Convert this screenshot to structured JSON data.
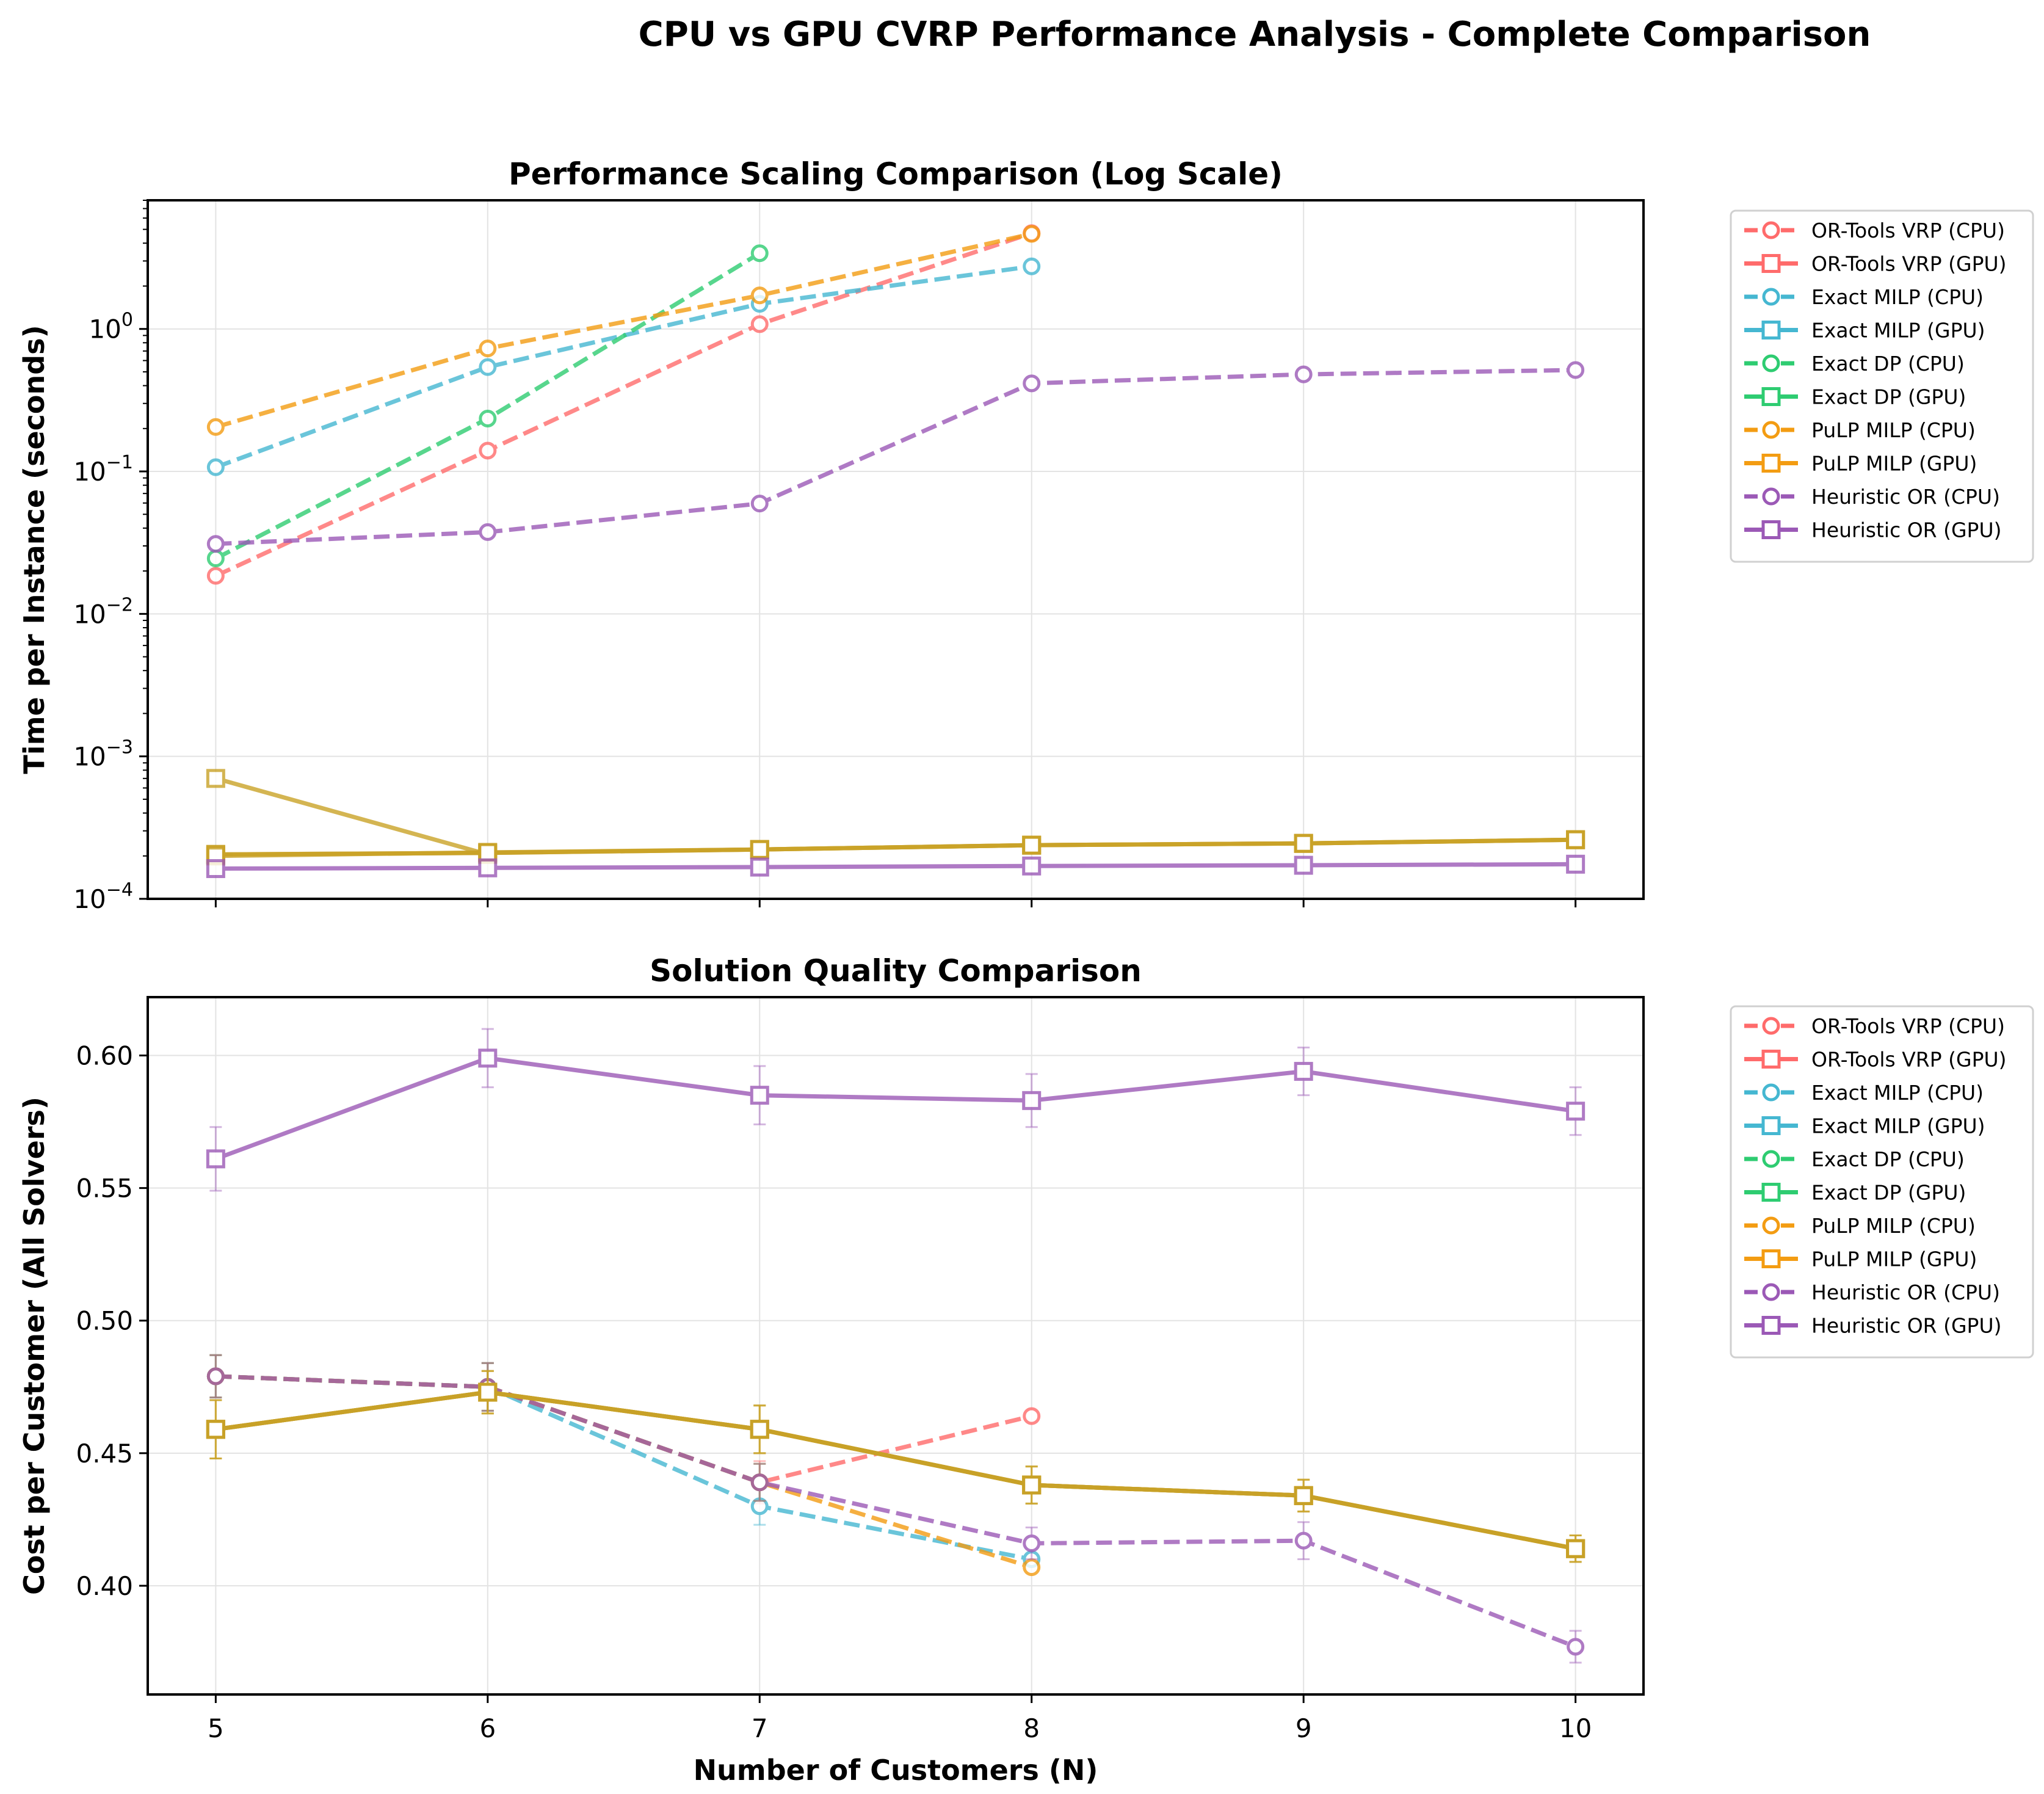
{
  "figure_title": "CPU vs GPU CVRP Performance Analysis - Complete Comparison",
  "colors": {
    "OR-Tools VRP": "#ff6b6b",
    "Exact MILP": "#45b7d1",
    "Exact DP": "#2ecc71",
    "PuLP MILP": "#f39c12",
    "Heuristic OR": "#9b59b6",
    "gpu_overlap": "#c9a227"
  },
  "legend_entries": [
    {
      "label": "OR-Tools VRP (CPU)",
      "solver": "OR-Tools VRP",
      "marker": "circle"
    },
    {
      "label": "OR-Tools VRP (GPU)",
      "solver": "OR-Tools VRP",
      "marker": "square"
    },
    {
      "label": "Exact MILP (CPU)",
      "solver": "Exact MILP",
      "marker": "circle"
    },
    {
      "label": "Exact MILP (GPU)",
      "solver": "Exact MILP",
      "marker": "square"
    },
    {
      "label": "Exact DP (CPU)",
      "solver": "Exact DP",
      "marker": "circle"
    },
    {
      "label": "Exact DP (GPU)",
      "solver": "Exact DP",
      "marker": "square"
    },
    {
      "label": "PuLP MILP (CPU)",
      "solver": "PuLP MILP",
      "marker": "circle"
    },
    {
      "label": "PuLP MILP (GPU)",
      "solver": "PuLP MILP",
      "marker": "square"
    },
    {
      "label": "Heuristic OR (CPU)",
      "solver": "Heuristic OR",
      "marker": "circle"
    },
    {
      "label": "Heuristic OR (GPU)",
      "solver": "Heuristic OR",
      "marker": "square"
    }
  ],
  "chart_data": [
    {
      "type": "line",
      "title": "Performance Scaling Comparison (Log Scale)",
      "xlabel": "",
      "ylabel": "Time per Instance (seconds)",
      "yscale": "log",
      "ylim": [
        0.0001,
        8
      ],
      "xlim": [
        4.75,
        10.25
      ],
      "xticks": [
        5,
        6,
        7,
        8,
        9,
        10
      ],
      "yticks": [
        {
          "value": 0.0001,
          "base": "10",
          "exp": "−4"
        },
        {
          "value": 0.001,
          "base": "10",
          "exp": "−3"
        },
        {
          "value": 0.01,
          "base": "10",
          "exp": "−2"
        },
        {
          "value": 0.1,
          "base": "10",
          "exp": "−1"
        },
        {
          "value": 1,
          "base": "10",
          "exp": "0"
        }
      ],
      "grid": true,
      "legend_position": "outside-right-top",
      "series": [
        {
          "name": "OR-Tools VRP (CPU)",
          "solver": "OR-Tools VRP",
          "device": "CPU",
          "x": [
            5,
            6,
            7,
            8
          ],
          "y": [
            0.0185,
            0.14,
            1.08,
            4.7
          ]
        },
        {
          "name": "Exact MILP (CPU)",
          "solver": "Exact MILP",
          "device": "CPU",
          "x": [
            5,
            6,
            7,
            8
          ],
          "y": [
            0.107,
            0.54,
            1.5,
            2.75
          ]
        },
        {
          "name": "Exact DP (CPU)",
          "solver": "Exact DP",
          "device": "CPU",
          "x": [
            5,
            6,
            7
          ],
          "y": [
            0.0245,
            0.235,
            3.4
          ]
        },
        {
          "name": "PuLP MILP (CPU)",
          "solver": "PuLP MILP",
          "device": "CPU",
          "x": [
            5,
            6,
            7,
            8
          ],
          "y": [
            0.205,
            0.73,
            1.72,
            4.65
          ]
        },
        {
          "name": "Heuristic OR (CPU)",
          "solver": "Heuristic OR",
          "device": "CPU",
          "x": [
            5,
            6,
            7,
            8,
            9,
            10
          ],
          "y": [
            0.031,
            0.0375,
            0.0595,
            0.415,
            0.48,
            0.515
          ]
        },
        {
          "name": "OR-Tools VRP (GPU)",
          "solver": "OR-Tools VRP",
          "device": "GPU",
          "x": [
            5,
            6
          ],
          "y": [
            0.0007,
            0.000205
          ]
        },
        {
          "name": "Exact MILP (GPU)",
          "solver": "Exact MILP",
          "device": "GPU",
          "x": [
            5,
            6,
            7,
            8,
            9,
            10
          ],
          "y": [
            0.000205,
            0.00021,
            0.000222,
            0.000238,
            0.000245,
            0.00026
          ]
        },
        {
          "name": "Exact DP (GPU)",
          "solver": "Exact DP",
          "device": "GPU",
          "x": [
            5,
            6,
            7,
            8,
            9,
            10
          ],
          "y": [
            0.000205,
            0.00021,
            0.000222,
            0.000238,
            0.000245,
            0.00026
          ]
        },
        {
          "name": "PuLP MILP (GPU)",
          "solver": "PuLP MILP",
          "device": "GPU",
          "x": [
            5,
            6,
            7,
            8,
            9,
            10
          ],
          "y": [
            0.0002,
            0.000212,
            0.000222,
            0.000238,
            0.000245,
            0.00026
          ]
        },
        {
          "name": "Heuristic OR (GPU)",
          "solver": "Heuristic OR",
          "device": "GPU",
          "x": [
            5,
            6,
            7,
            8,
            9,
            10
          ],
          "y": [
            0.000163,
            0.000165,
            0.000167,
            0.00017,
            0.000172,
            0.000175
          ]
        }
      ]
    },
    {
      "type": "line",
      "title": "Solution Quality Comparison",
      "xlabel": "Number of Customers (N)",
      "ylabel": "Cost per Customer (All Solvers)",
      "yscale": "linear",
      "ylim": [
        0.359,
        0.622
      ],
      "xlim": [
        4.75,
        10.25
      ],
      "xticks": [
        5,
        6,
        7,
        8,
        9,
        10
      ],
      "yticks": [
        {
          "value": 0.4,
          "label": "0.40"
        },
        {
          "value": 0.45,
          "label": "0.45"
        },
        {
          "value": 0.5,
          "label": "0.50"
        },
        {
          "value": 0.55,
          "label": "0.55"
        },
        {
          "value": 0.6,
          "label": "0.60"
        }
      ],
      "grid": true,
      "legend_position": "outside-right-top",
      "series": [
        {
          "name": "OR-Tools VRP (CPU)",
          "solver": "OR-Tools VRP",
          "device": "CPU",
          "x": [
            5,
            6,
            7,
            8
          ],
          "y": [
            0.479,
            0.475,
            0.439,
            0.464
          ],
          "err": [
            0.008,
            0.009,
            0.008,
            0.0
          ]
        },
        {
          "name": "Exact MILP (CPU)",
          "solver": "Exact MILP",
          "device": "CPU",
          "x": [
            5,
            6,
            7,
            8
          ],
          "y": [
            0.479,
            0.475,
            0.43,
            0.41
          ],
          "err": [
            0.008,
            0.009,
            0.007,
            0.0
          ]
        },
        {
          "name": "Exact DP (CPU)",
          "solver": "Exact DP",
          "device": "CPU",
          "x": [
            5,
            6,
            7
          ],
          "y": [
            0.479,
            0.475,
            0.439
          ],
          "err": [
            0.008,
            0.009,
            0.007
          ]
        },
        {
          "name": "PuLP MILP (CPU)",
          "solver": "PuLP MILP",
          "device": "CPU",
          "x": [
            5,
            6,
            7,
            8
          ],
          "y": [
            0.479,
            0.475,
            0.439,
            0.407
          ],
          "err": [
            0.008,
            0.009,
            0.007,
            0.0
          ]
        },
        {
          "name": "Heuristic OR (CPU)",
          "solver": "Heuristic OR",
          "device": "CPU",
          "x": [
            5,
            6,
            7,
            8,
            9,
            10
          ],
          "y": [
            0.479,
            0.475,
            0.439,
            0.416,
            0.417,
            0.377
          ],
          "err": [
            0.008,
            0.009,
            0.007,
            0.006,
            0.007,
            0.006
          ]
        },
        {
          "name": "OR-Tools VRP (GPU)",
          "solver": "OR-Tools VRP",
          "device": "GPU",
          "x": [
            5,
            6,
            7,
            8,
            9,
            10
          ],
          "y": [
            0.459,
            0.473,
            0.459,
            0.438,
            0.434,
            0.414
          ],
          "err": [
            0.011,
            0.008,
            0.009,
            0.007,
            0.006,
            0.005
          ]
        },
        {
          "name": "Exact MILP (GPU)",
          "solver": "Exact MILP",
          "device": "GPU",
          "x": [
            5,
            6,
            7,
            8,
            9,
            10
          ],
          "y": [
            0.459,
            0.473,
            0.459,
            0.438,
            0.434,
            0.414
          ],
          "err": [
            0.011,
            0.008,
            0.009,
            0.007,
            0.006,
            0.005
          ]
        },
        {
          "name": "Exact DP (GPU)",
          "solver": "Exact DP",
          "device": "GPU",
          "x": [
            5,
            6,
            7,
            8,
            9,
            10
          ],
          "y": [
            0.459,
            0.473,
            0.459,
            0.438,
            0.434,
            0.414
          ],
          "err": [
            0.011,
            0.008,
            0.009,
            0.007,
            0.006,
            0.005
          ]
        },
        {
          "name": "PuLP MILP (GPU)",
          "solver": "PuLP MILP",
          "device": "GPU",
          "x": [
            5,
            6,
            7,
            8,
            9,
            10
          ],
          "y": [
            0.459,
            0.473,
            0.459,
            0.438,
            0.434,
            0.414
          ],
          "err": [
            0.011,
            0.008,
            0.009,
            0.007,
            0.006,
            0.005
          ]
        },
        {
          "name": "Heuristic OR (GPU)",
          "solver": "Heuristic OR",
          "device": "GPU",
          "x": [
            5,
            6,
            7,
            8,
            9,
            10
          ],
          "y": [
            0.561,
            0.599,
            0.585,
            0.583,
            0.594,
            0.579
          ],
          "err": [
            0.012,
            0.011,
            0.011,
            0.01,
            0.009,
            0.009
          ]
        }
      ]
    }
  ]
}
